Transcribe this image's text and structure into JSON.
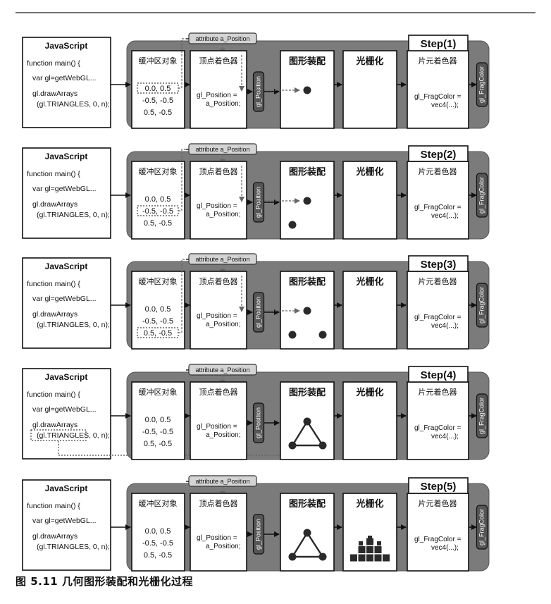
{
  "caption": "图 5.11 几何图形装配和光栅化过程",
  "labels": {
    "js_title": "JavaScript",
    "js_line1": "function main() {",
    "js_line2": "var gl=getWebGL...",
    "js_line3": "gl.drawArrays",
    "js_line4": "(gl.TRIANGLES, 0, n);",
    "attribute": "attribute a_Position",
    "buffer_title": "缓冲区对象",
    "vertex_row1": "0.0,  0.5",
    "vertex_row2": "-0.5, -0.5",
    "vertex_row3": "0.5, -0.5",
    "vshader_title": "顶点着色器",
    "vshader_code1": "gl_Position =",
    "vshader_code2": "a_Position;",
    "gl_position": "gl_Position",
    "assembly_title": "图形装配",
    "raster_title": "光栅化",
    "fshader_title": "片元着色器",
    "fshader_code1": "gl_FragColor =",
    "fshader_code2": "vec4(...);",
    "gl_fragcolor": "gl_FragColor"
  },
  "steps": [
    {
      "label": "Step(1)",
      "highlight_row": 1,
      "assembly": "one-point",
      "raster": false,
      "js_highlight": false
    },
    {
      "label": "Step(2)",
      "highlight_row": 2,
      "assembly": "two-points",
      "raster": false,
      "js_highlight": false
    },
    {
      "label": "Step(3)",
      "highlight_row": 3,
      "assembly": "three-points",
      "raster": false,
      "js_highlight": false
    },
    {
      "label": "Step(4)",
      "highlight_row": 0,
      "assembly": "triangle",
      "raster": false,
      "js_highlight": true
    },
    {
      "label": "Step(5)",
      "highlight_row": 0,
      "assembly": "triangle",
      "raster": true,
      "js_highlight": false
    }
  ]
}
